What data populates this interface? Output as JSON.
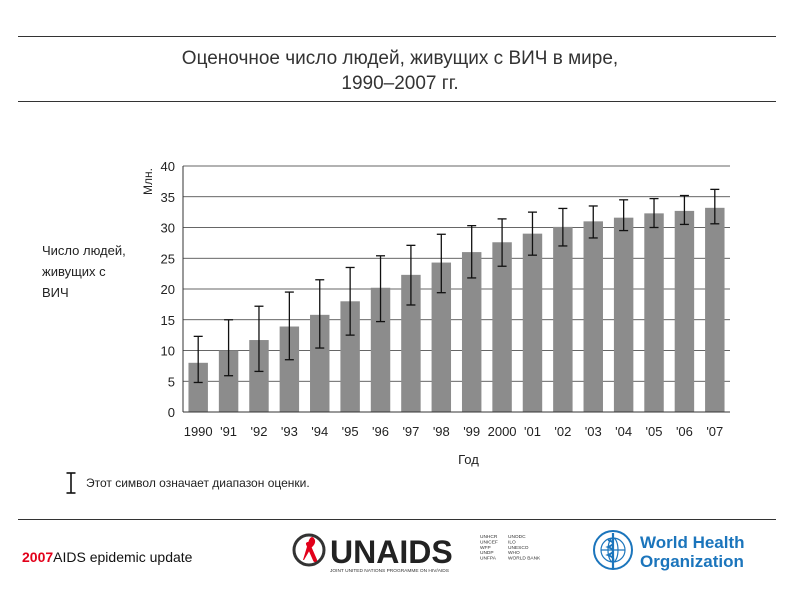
{
  "title_line1": "Оценочное число людей, живущих с ВИЧ в мире,",
  "title_line2": "1990–2007 гг.",
  "side_label_line1": "Число людей,",
  "side_label_line2": "живущих с",
  "side_label_line3": "ВИЧ",
  "legend_text": "Этот символ означает диапазон оценки.",
  "footer_year": "2007",
  "footer_text": "AIDS epidemic update",
  "unaids_logo": {
    "name": "UNAIDS",
    "partners_col1": [
      "UNHCR",
      "UNICEF",
      "WFP",
      "UNDP",
      "UNFPA"
    ],
    "partners_col2": [
      "UNODC",
      "ILO",
      "UNESCO",
      "WHO",
      "WORLD BANK"
    ],
    "tagline": "JOINT UNITED NATIONS PROGRAMME ON HIV/AIDS"
  },
  "who_logo": {
    "line1": "World Health",
    "line2": "Organization"
  },
  "colors": {
    "bar": "#8c8c8c",
    "red": "#e2001a",
    "who_blue": "#1b75bc",
    "text": "#222222"
  },
  "chart_data": {
    "type": "bar",
    "categories": [
      "1990",
      "'91",
      "'92",
      "'93",
      "'94",
      "'95",
      "'96",
      "'97",
      "'98",
      "'99",
      "2000",
      "'01",
      "'02",
      "'03",
      "'04",
      "'05",
      "'06",
      "'07"
    ],
    "values": [
      8.0,
      10.0,
      11.7,
      13.9,
      15.8,
      18.0,
      20.2,
      22.3,
      24.3,
      26.0,
      27.6,
      29.0,
      30.1,
      31.0,
      31.6,
      32.3,
      32.7,
      33.2
    ],
    "low": [
      4.8,
      5.9,
      6.6,
      8.5,
      10.4,
      12.5,
      14.7,
      17.4,
      19.4,
      21.8,
      23.7,
      25.5,
      27.0,
      28.3,
      29.5,
      30.0,
      30.5,
      30.6
    ],
    "high": [
      12.3,
      15.0,
      17.2,
      19.5,
      21.5,
      23.5,
      25.4,
      27.1,
      28.9,
      30.3,
      31.4,
      32.5,
      33.1,
      33.5,
      34.5,
      34.7,
      35.2,
      36.2
    ],
    "xlabel": "Год",
    "ylabel": "Млн.",
    "ylim": [
      0,
      40
    ],
    "yticks": [
      0,
      5,
      10,
      15,
      20,
      25,
      30,
      35,
      40
    ],
    "grid": true
  }
}
